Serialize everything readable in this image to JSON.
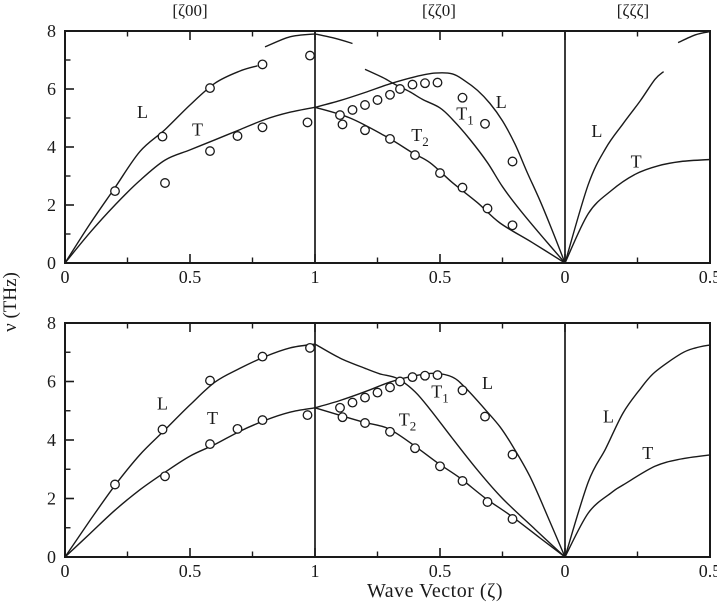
{
  "figure": {
    "y_axis_label": "ν (THz)",
    "x_axis_label": "Wave Vector  (ζ)",
    "direction_labels": [
      "[ζ00]",
      "[ζζ0]",
      "[ζζζ]"
    ],
    "line_color": "#1a1a1a",
    "background": "#ffffff"
  },
  "chart_data": {
    "type": "line",
    "title": "",
    "xlabel": "Wave Vector (ζ)",
    "ylabel": "ν (THz)",
    "ylim": [
      0,
      8
    ],
    "grid": false,
    "legend_position": "none",
    "y_major_ticks": [
      0,
      2,
      4,
      6,
      8
    ],
    "y_minor_ticks": [
      1,
      3,
      5,
      7
    ],
    "segments": [
      {
        "direction": "[ζ00]",
        "zeta_start": 0,
        "zeta_end": 1,
        "major_ticks": [
          {
            "z": 0,
            "label": "0"
          },
          {
            "z": 0.5,
            "label": "0.5"
          },
          {
            "z": 1,
            "label": "1"
          }
        ],
        "minor_ticks": [
          0.25,
          0.75
        ]
      },
      {
        "direction": "[ζζ0]",
        "zeta_start": 1,
        "zeta_end": 0,
        "major_ticks": [
          {
            "z": 0.5,
            "label": "0.5"
          },
          {
            "z": 0,
            "label": "0"
          }
        ],
        "minor_ticks": [
          0.75,
          0.25
        ]
      },
      {
        "direction": "[ζζζ]",
        "zeta_start": 0,
        "zeta_end": 0.5,
        "major_ticks": [
          {
            "z": 0.5,
            "label": "0.5"
          }
        ],
        "minor_ticks": [
          0.25
        ]
      }
    ],
    "experimental_points": [
      {
        "group": "L [ζ00]",
        "segment": 0,
        "points": [
          [
            0.2,
            2.48
          ],
          [
            0.39,
            4.36
          ],
          [
            0.58,
            6.03
          ],
          [
            0.79,
            6.85
          ],
          [
            0.98,
            7.15
          ]
        ]
      },
      {
        "group": "T [ζ00]",
        "segment": 0,
        "points": [
          [
            0.4,
            2.76
          ],
          [
            0.58,
            3.86
          ],
          [
            0.69,
            4.38
          ],
          [
            0.79,
            4.68
          ],
          [
            0.97,
            4.85
          ]
        ]
      },
      {
        "group": "T1/L [ζζ0]",
        "segment": 1,
        "points": [
          [
            0.9,
            5.1
          ],
          [
            0.85,
            5.28
          ],
          [
            0.8,
            5.45
          ],
          [
            0.75,
            5.62
          ],
          [
            0.7,
            5.8
          ],
          [
            0.66,
            6.0
          ],
          [
            0.61,
            6.15
          ],
          [
            0.56,
            6.2
          ],
          [
            0.51,
            6.22
          ]
        ]
      },
      {
        "group": "L/T1 low [ζζ0]",
        "segment": 1,
        "points": [
          [
            0.41,
            5.7
          ],
          [
            0.32,
            4.8
          ],
          [
            0.21,
            3.5
          ]
        ]
      },
      {
        "group": "T2 [ζζ0]",
        "segment": 1,
        "points": [
          [
            0.89,
            4.78
          ],
          [
            0.8,
            4.58
          ],
          [
            0.7,
            4.28
          ],
          [
            0.6,
            3.72
          ],
          [
            0.5,
            3.1
          ],
          [
            0.41,
            2.6
          ],
          [
            0.31,
            1.88
          ],
          [
            0.21,
            1.3
          ]
        ]
      }
    ],
    "panels": [
      {
        "name": "top",
        "curves": [
          {
            "branch": "L",
            "segment": 0,
            "points": [
              [
                0,
                0
              ],
              [
                0.1,
                1.35
              ],
              [
                0.2,
                2.6
              ],
              [
                0.3,
                3.85
              ],
              [
                0.4,
                4.6
              ],
              [
                0.5,
                5.45
              ],
              [
                0.6,
                6.2
              ],
              [
                0.7,
                6.62
              ],
              [
                0.77,
                6.8
              ]
            ]
          },
          {
            "branch": "L-zone-arc",
            "segment": 0,
            "points": [
              [
                0.8,
                7.45
              ],
              [
                0.9,
                7.8
              ],
              [
                1,
                7.9
              ]
            ]
          },
          {
            "branch": "L-zone-arc",
            "segment": 1,
            "points": [
              [
                1,
                7.9
              ],
              [
                0.92,
                7.75
              ],
              [
                0.85,
                7.57
              ]
            ]
          },
          {
            "branch": "T",
            "segment": 0,
            "points": [
              [
                0,
                0
              ],
              [
                0.1,
                1.05
              ],
              [
                0.2,
                2.0
              ],
              [
                0.3,
                2.85
              ],
              [
                0.4,
                3.55
              ],
              [
                0.5,
                3.9
              ],
              [
                0.6,
                4.25
              ],
              [
                0.7,
                4.6
              ],
              [
                0.8,
                4.95
              ],
              [
                0.9,
                5.2
              ],
              [
                1,
                5.37
              ]
            ]
          },
          {
            "branch": "T1",
            "segment": 1,
            "points": [
              [
                0.8,
                6.68
              ],
              [
                0.73,
                6.4
              ],
              [
                0.68,
                6.16
              ],
              [
                0.62,
                5.9
              ],
              [
                0.57,
                5.64
              ],
              [
                0.5,
                5.35
              ],
              [
                0.45,
                4.95
              ],
              [
                0.38,
                4.26
              ],
              [
                0.31,
                3.46
              ],
              [
                0.25,
                2.63
              ],
              [
                0.18,
                1.83
              ],
              [
                0.09,
                0.9
              ],
              [
                0,
                0
              ]
            ]
          },
          {
            "branch": "L",
            "segment": 1,
            "points": [
              [
                1,
                5.37
              ],
              [
                0.9,
                5.6
              ],
              [
                0.8,
                5.88
              ],
              [
                0.7,
                6.18
              ],
              [
                0.6,
                6.42
              ],
              [
                0.52,
                6.55
              ],
              [
                0.45,
                6.52
              ],
              [
                0.4,
                6.28
              ],
              [
                0.35,
                5.95
              ],
              [
                0.3,
                5.5
              ],
              [
                0.25,
                4.9
              ],
              [
                0.2,
                4.1
              ],
              [
                0.15,
                3.1
              ],
              [
                0.1,
                2.15
              ],
              [
                0.05,
                1.1
              ],
              [
                0,
                0
              ]
            ]
          },
          {
            "branch": "T2",
            "segment": 1,
            "points": [
              [
                1,
                5.37
              ],
              [
                0.86,
                5.0
              ],
              [
                0.71,
                4.33
              ],
              [
                0.61,
                3.8
              ],
              [
                0.54,
                3.46
              ],
              [
                0.45,
                2.77
              ],
              [
                0.35,
                2.08
              ],
              [
                0.26,
                1.38
              ],
              [
                0.13,
                0.7
              ],
              [
                0,
                0
              ]
            ]
          },
          {
            "branch": "L",
            "segment": 2,
            "points": [
              [
                0,
                0
              ],
              [
                0.08,
                2.7
              ],
              [
                0.14,
                3.95
              ],
              [
                0.2,
                4.8
              ],
              [
                0.26,
                5.6
              ],
              [
                0.31,
                6.33
              ],
              [
                0.34,
                6.6
              ]
            ]
          },
          {
            "branch": "L-zone-arc",
            "segment": 2,
            "points": [
              [
                0.39,
                7.6
              ],
              [
                0.45,
                7.87
              ],
              [
                0.5,
                7.98
              ]
            ]
          },
          {
            "branch": "T",
            "segment": 2,
            "points": [
              [
                0,
                0
              ],
              [
                0.08,
                1.7
              ],
              [
                0.16,
                2.5
              ],
              [
                0.24,
                3.05
              ],
              [
                0.32,
                3.35
              ],
              [
                0.4,
                3.5
              ],
              [
                0.5,
                3.57
              ]
            ]
          }
        ],
        "branch_labels": [
          {
            "text": "L",
            "subscript": "",
            "segment": 0,
            "zeta": 0.31,
            "nu": 5.0
          },
          {
            "text": "T",
            "subscript": "",
            "segment": 0,
            "zeta": 0.53,
            "nu": 4.4
          },
          {
            "text": "T",
            "subscript": "2",
            "segment": 1,
            "zeta": 0.58,
            "nu": 4.2
          },
          {
            "text": "T",
            "subscript": "1",
            "segment": 1,
            "zeta": 0.4,
            "nu": 4.95
          },
          {
            "text": "L",
            "subscript": "",
            "segment": 1,
            "zeta": 0.255,
            "nu": 5.35
          },
          {
            "text": "L",
            "subscript": "",
            "segment": 2,
            "zeta": 0.11,
            "nu": 4.35
          },
          {
            "text": "T",
            "subscript": "",
            "segment": 2,
            "zeta": 0.245,
            "nu": 3.3
          }
        ]
      },
      {
        "name": "bottom",
        "curves": [
          {
            "branch": "L",
            "segment": 0,
            "points": [
              [
                0,
                0
              ],
              [
                0.1,
                1.25
              ],
              [
                0.2,
                2.45
              ],
              [
                0.3,
                3.5
              ],
              [
                0.4,
                4.35
              ],
              [
                0.5,
                5.2
              ],
              [
                0.6,
                5.98
              ],
              [
                0.7,
                6.45
              ],
              [
                0.8,
                6.85
              ],
              [
                0.9,
                7.15
              ],
              [
                1,
                7.28
              ]
            ]
          },
          {
            "branch": "T",
            "segment": 0,
            "points": [
              [
                0,
                0
              ],
              [
                0.1,
                0.8
              ],
              [
                0.2,
                1.6
              ],
              [
                0.3,
                2.3
              ],
              [
                0.4,
                2.9
              ],
              [
                0.5,
                3.45
              ],
              [
                0.6,
                3.85
              ],
              [
                0.7,
                4.3
              ],
              [
                0.8,
                4.67
              ],
              [
                0.9,
                4.95
              ],
              [
                1,
                5.1
              ]
            ]
          },
          {
            "branch": "T1",
            "segment": 1,
            "points": [
              [
                1,
                7.28
              ],
              [
                0.9,
                6.8
              ],
              [
                0.8,
                6.45
              ],
              [
                0.74,
                6.26
              ],
              [
                0.67,
                6.1
              ],
              [
                0.6,
                5.65
              ],
              [
                0.54,
                5.05
              ],
              [
                0.45,
                4.05
              ],
              [
                0.35,
                2.97
              ],
              [
                0.25,
                2.0
              ],
              [
                0.12,
                0.95
              ],
              [
                0,
                0
              ]
            ]
          },
          {
            "branch": "L",
            "segment": 1,
            "points": [
              [
                1,
                5.1
              ],
              [
                0.9,
                5.35
              ],
              [
                0.8,
                5.65
              ],
              [
                0.7,
                5.98
              ],
              [
                0.6,
                6.2
              ],
              [
                0.52,
                6.28
              ],
              [
                0.45,
                6.15
              ],
              [
                0.4,
                5.8
              ],
              [
                0.32,
                5.05
              ],
              [
                0.26,
                4.45
              ],
              [
                0.21,
                3.8
              ],
              [
                0.14,
                2.75
              ],
              [
                0.07,
                1.4
              ],
              [
                0,
                0
              ]
            ]
          },
          {
            "branch": "T2",
            "segment": 1,
            "points": [
              [
                1,
                5.1
              ],
              [
                0.91,
                4.87
              ],
              [
                0.81,
                4.62
              ],
              [
                0.71,
                4.4
              ],
              [
                0.61,
                3.85
              ],
              [
                0.51,
                3.22
              ],
              [
                0.42,
                2.7
              ],
              [
                0.32,
                2.02
              ],
              [
                0.21,
                1.37
              ],
              [
                0.1,
                0.65
              ],
              [
                0,
                0
              ]
            ]
          },
          {
            "branch": "L",
            "segment": 2,
            "points": [
              [
                0,
                0
              ],
              [
                0.08,
                2.56
              ],
              [
                0.14,
                3.7
              ],
              [
                0.2,
                4.92
              ],
              [
                0.26,
                5.75
              ],
              [
                0.31,
                6.32
              ],
              [
                0.4,
                6.95
              ],
              [
                0.45,
                7.15
              ],
              [
                0.5,
                7.25
              ]
            ]
          },
          {
            "branch": "T",
            "segment": 2,
            "points": [
              [
                0,
                0
              ],
              [
                0.08,
                1.5
              ],
              [
                0.16,
                2.2
              ],
              [
                0.2,
                2.46
              ],
              [
                0.31,
                3.1
              ],
              [
                0.4,
                3.35
              ],
              [
                0.5,
                3.49
              ]
            ]
          }
        ],
        "branch_labels": [
          {
            "text": "L",
            "subscript": "",
            "segment": 0,
            "zeta": 0.39,
            "nu": 5.05
          },
          {
            "text": "T",
            "subscript": "",
            "segment": 0,
            "zeta": 0.59,
            "nu": 4.55
          },
          {
            "text": "T",
            "subscript": "2",
            "segment": 1,
            "zeta": 0.63,
            "nu": 4.5
          },
          {
            "text": "T",
            "subscript": "1",
            "segment": 1,
            "zeta": 0.5,
            "nu": 5.45
          },
          {
            "text": "L",
            "subscript": "",
            "segment": 1,
            "zeta": 0.31,
            "nu": 5.75
          },
          {
            "text": "L",
            "subscript": "",
            "segment": 2,
            "zeta": 0.15,
            "nu": 4.6
          },
          {
            "text": "T",
            "subscript": "",
            "segment": 2,
            "zeta": 0.285,
            "nu": 3.35
          }
        ]
      }
    ]
  }
}
